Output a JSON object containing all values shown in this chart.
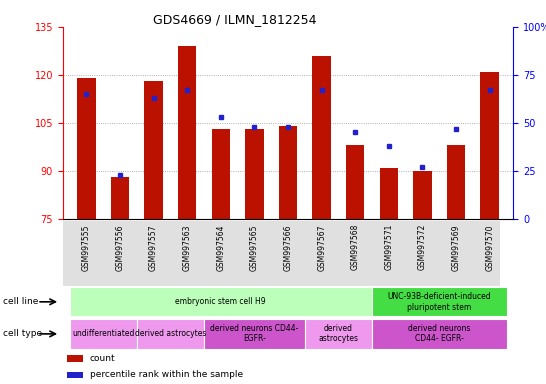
{
  "title": "GDS4669 / ILMN_1812254",
  "samples": [
    "GSM997555",
    "GSM997556",
    "GSM997557",
    "GSM997563",
    "GSM997564",
    "GSM997565",
    "GSM997566",
    "GSM997567",
    "GSM997568",
    "GSM997571",
    "GSM997572",
    "GSM997569",
    "GSM997570"
  ],
  "counts": [
    119,
    88,
    118,
    129,
    103,
    103,
    104,
    126,
    98,
    91,
    90,
    98,
    121
  ],
  "percentiles": [
    65,
    23,
    63,
    67,
    53,
    48,
    48,
    67,
    45,
    38,
    27,
    47,
    67
  ],
  "ylim_left": [
    75,
    135
  ],
  "ylim_right": [
    0,
    100
  ],
  "yticks_left": [
    75,
    90,
    105,
    120,
    135
  ],
  "yticks_right": [
    0,
    25,
    50,
    75,
    100
  ],
  "bar_color": "#bb1100",
  "dot_color": "#2222cc",
  "grid_color": "#999999",
  "cell_line_groups": [
    {
      "label": "embryonic stem cell H9",
      "start": 0,
      "end": 9,
      "color": "#bbffbb"
    },
    {
      "label": "UNC-93B-deficient-induced\npluripotent stem",
      "start": 9,
      "end": 13,
      "color": "#44dd44"
    }
  ],
  "cell_type_groups": [
    {
      "label": "undifferentiated",
      "start": 0,
      "end": 2,
      "color": "#ee99ee"
    },
    {
      "label": "derived astrocytes",
      "start": 2,
      "end": 4,
      "color": "#ee99ee"
    },
    {
      "label": "derived neurons CD44-\nEGFR-",
      "start": 4,
      "end": 7,
      "color": "#cc55cc"
    },
    {
      "label": "derived\nastrocytes",
      "start": 7,
      "end": 9,
      "color": "#ee99ee"
    },
    {
      "label": "derived neurons\nCD44- EGFR-",
      "start": 9,
      "end": 13,
      "color": "#cc55cc"
    }
  ],
  "legend_items": [
    {
      "label": "count",
      "color": "#bb1100"
    },
    {
      "label": "percentile rank within the sample",
      "color": "#2222cc"
    }
  ]
}
